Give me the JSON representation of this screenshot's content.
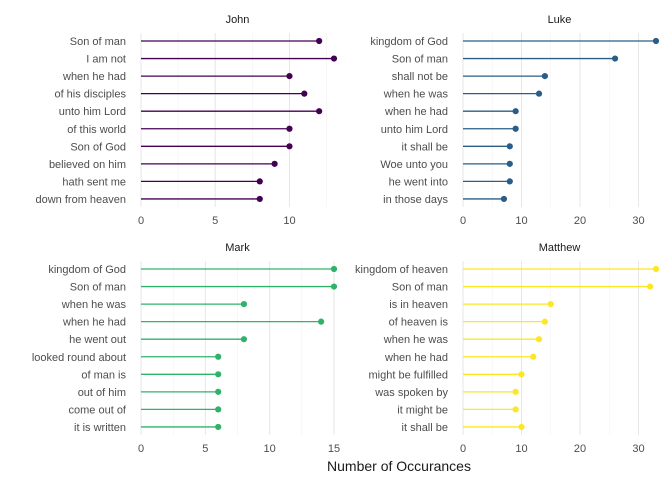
{
  "chart_data": {
    "type": "lollipop",
    "xlabel": "Number of Occurances",
    "grid": true,
    "facets": [
      {
        "title": "John",
        "color": "#440154",
        "xlim": [
          0,
          13
        ],
        "xticks": [
          0,
          5,
          10
        ],
        "categories": [
          "Son of man",
          "I am not",
          "when he had",
          "of his disciples",
          "unto him Lord",
          "of this world",
          "Son of God",
          "believed on him",
          "hath sent me",
          "down from heaven"
        ],
        "values": [
          12,
          13,
          10,
          11,
          12,
          10,
          10,
          9,
          8,
          8
        ]
      },
      {
        "title": "Luke",
        "color": "#2a5d87",
        "xlim": [
          0,
          33
        ],
        "xticks": [
          0,
          10,
          20,
          30
        ],
        "categories": [
          "kingdom of God",
          "Son of man",
          "shall not be",
          "when he was",
          "when he had",
          "unto him Lord",
          "it shall be",
          "Woe unto you",
          "he went into",
          "in those days"
        ],
        "values": [
          33,
          26,
          14,
          13,
          9,
          9,
          8,
          8,
          8,
          7
        ]
      },
      {
        "title": "Mark",
        "color": "#2fb36b",
        "xlim": [
          0,
          15
        ],
        "xticks": [
          0,
          5,
          10,
          15
        ],
        "categories": [
          "kingdom of God",
          "Son of man",
          "when he was",
          "when he had",
          "he went out",
          "looked round about",
          "of man is",
          "out of him",
          "come out of",
          "it is written"
        ],
        "values": [
          15,
          15,
          8,
          14,
          8,
          6,
          6,
          6,
          6,
          6
        ]
      },
      {
        "title": "Matthew",
        "color": "#fde725",
        "xlim": [
          0,
          33
        ],
        "xticks": [
          0,
          10,
          20,
          30
        ],
        "categories": [
          "kingdom of heaven",
          "Son of man",
          "is in heaven",
          "of heaven is",
          "when he was",
          "when he had",
          "might be fulfilled",
          "was spoken by",
          "it might be",
          "it shall be"
        ],
        "values": [
          33,
          32,
          15,
          14,
          13,
          12,
          10,
          9,
          9,
          10
        ]
      }
    ]
  }
}
